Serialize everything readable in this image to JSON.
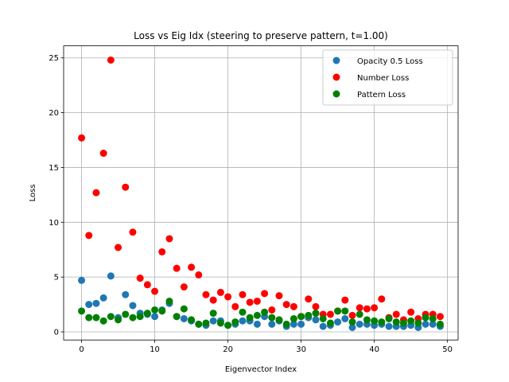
{
  "chart_data": {
    "type": "scatter",
    "title": "Loss vs Eig Idx (steering to preserve pattern, t=1.00)",
    "xlabel": "Eigenvector Index",
    "ylabel": "Loss",
    "xlim": [
      -2.45,
      51.45
    ],
    "ylim": [
      -0.74,
      26.1
    ],
    "xticks": [
      0,
      10,
      20,
      30,
      40,
      50
    ],
    "yticks": [
      0,
      5,
      10,
      15,
      20,
      25
    ],
    "grid": true,
    "legend_position": "top-right",
    "x": [
      0,
      1,
      2,
      3,
      4,
      5,
      6,
      7,
      8,
      9,
      10,
      11,
      12,
      13,
      14,
      15,
      16,
      17,
      18,
      19,
      20,
      21,
      22,
      23,
      24,
      25,
      26,
      27,
      28,
      29,
      30,
      31,
      32,
      33,
      34,
      35,
      36,
      37,
      38,
      39,
      40,
      41,
      42,
      43,
      44,
      45,
      46,
      47,
      48,
      49
    ],
    "series": [
      {
        "name": "Opacity 0.5 Loss",
        "color": "#1f77b4",
        "values": [
          4.7,
          2.5,
          2.6,
          3.1,
          5.1,
          1.3,
          3.4,
          2.4,
          1.7,
          1.6,
          1.4,
          2.0,
          2.6,
          1.4,
          1.2,
          1.0,
          0.7,
          0.6,
          1.0,
          1.0,
          0.6,
          0.7,
          1.0,
          1.0,
          0.7,
          1.4,
          0.7,
          1.0,
          0.5,
          0.7,
          0.7,
          1.3,
          1.1,
          0.5,
          0.6,
          0.9,
          1.2,
          0.4,
          0.7,
          0.7,
          0.6,
          0.7,
          0.5,
          0.5,
          0.5,
          0.6,
          0.4,
          0.7,
          0.7,
          0.5
        ]
      },
      {
        "name": "Number Loss",
        "color": "#ff0000",
        "values": [
          17.7,
          8.8,
          12.7,
          16.3,
          24.8,
          7.7,
          13.2,
          9.1,
          4.9,
          4.3,
          3.7,
          7.3,
          8.5,
          5.8,
          4.1,
          5.9,
          5.2,
          3.4,
          2.9,
          3.6,
          3.2,
          2.3,
          3.4,
          2.7,
          2.8,
          3.5,
          2.0,
          3.3,
          2.5,
          2.3,
          1.4,
          3.0,
          2.3,
          1.6,
          1.6,
          1.9,
          2.9,
          1.5,
          2.2,
          2.1,
          2.2,
          3.0,
          1.3,
          1.6,
          1.1,
          1.8,
          1.2,
          1.6,
          1.6,
          1.4
        ]
      },
      {
        "name": "Pattern Loss",
        "color": "#008000",
        "values": [
          1.9,
          1.3,
          1.3,
          1.0,
          1.4,
          1.1,
          1.6,
          1.3,
          1.4,
          1.7,
          2.0,
          1.9,
          2.8,
          1.4,
          2.1,
          1.1,
          0.7,
          0.8,
          1.7,
          0.8,
          0.6,
          0.9,
          1.8,
          1.3,
          1.5,
          1.8,
          1.3,
          1.1,
          0.7,
          1.2,
          1.4,
          1.5,
          1.7,
          1.2,
          0.8,
          1.9,
          1.9,
          0.9,
          1.6,
          1.1,
          1.0,
          0.9,
          1.2,
          0.9,
          0.8,
          1.0,
          0.8,
          1.3,
          1.2,
          0.7
        ]
      }
    ]
  }
}
